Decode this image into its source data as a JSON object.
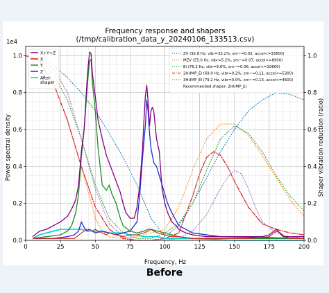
{
  "caption": "Before",
  "chart_data": {
    "type": "line",
    "title": "Frequency response and shapers",
    "subtitle": "(/tmp/calibration_data_y_20240106_133513.csv)",
    "xlabel": "Frequency, Hz",
    "ylabel": "Power spectral density",
    "y2label": "Shaper vibration reduction (ratio)",
    "y_exponent_label": "1e4",
    "xlim": [
      0,
      200
    ],
    "ylim": [
      0,
      1.05
    ],
    "y2lim": [
      0,
      1.05
    ],
    "x_ticks": [
      "0",
      "25",
      "50",
      "75",
      "100",
      "125",
      "150",
      "175",
      "200"
    ],
    "y_ticks": [
      "0.0",
      "0.2",
      "0.4",
      "0.6",
      "0.8",
      "1.0"
    ],
    "y2_ticks": [
      "0.0",
      "0.2",
      "0.4",
      "0.6",
      "0.8",
      "1.0"
    ],
    "grid": true,
    "legend_left": {
      "placement": "top-left",
      "entries": [
        {
          "name": "X+Y+Z",
          "color": "#800080",
          "style": "solid"
        },
        {
          "name": "X",
          "color": "#cc2222",
          "style": "solid"
        },
        {
          "name": "Y",
          "color": "#228b22",
          "style": "solid"
        },
        {
          "name": "Z",
          "color": "#1f2fcc",
          "style": "solid"
        },
        {
          "name": "After\nshaper",
          "color": "#00ced1",
          "style": "solid"
        }
      ]
    },
    "legend_right": {
      "placement": "top-right",
      "entries": [
        {
          "name": "ZV (92.8 Hz, vibr=32.2%, sm~=0.02, accel<=33600)",
          "color": "#1f77b4",
          "style": "dotted"
        },
        {
          "name": "MZV (55.0 Hz, vibr=5.2%, sm~=0.07, accel<=8900)",
          "color": "#ff7f0e",
          "style": "dotted"
        },
        {
          "name": "EI (76.2 Hz, vibr=9.6%, sm~=0.06, accel<=10800)",
          "color": "#2ca02c",
          "style": "dotted"
        },
        {
          "name": "2HUMP_EI (69.0 Hz, vibr=0.2%, sm~=0.11, accel<=5300)",
          "color": "#d62728",
          "style": "dashdot"
        },
        {
          "name": "3HUMP_EI (79.2 Hz, vibr=0.0%, sm~=0.13, accel<=4600)",
          "color": "#9467bd",
          "style": "dotted"
        }
      ],
      "note": "Recommended shaper: 2HUMP_EI"
    },
    "series": [
      {
        "name": "X+Y+Z",
        "color": "#800080",
        "width": 1.3,
        "dash": "",
        "x": [
          5,
          10,
          15,
          20,
          25,
          30,
          33,
          36,
          38,
          40,
          42,
          44,
          45,
          46,
          47,
          48,
          50,
          52,
          55,
          58,
          60,
          62,
          65,
          68,
          70,
          72,
          75,
          78,
          80,
          82,
          84,
          85,
          86,
          87,
          88,
          89,
          90,
          91,
          92,
          94,
          96,
          98,
          100,
          102,
          105,
          108,
          110,
          115,
          120,
          130,
          140,
          150,
          160,
          170,
          175,
          180,
          185,
          190,
          195,
          200
        ],
        "y": [
          0.02,
          0.05,
          0.06,
          0.08,
          0.1,
          0.13,
          0.17,
          0.22,
          0.3,
          0.48,
          0.6,
          0.85,
          0.95,
          1.02,
          1.01,
          0.9,
          0.78,
          0.65,
          0.55,
          0.46,
          0.42,
          0.38,
          0.32,
          0.26,
          0.2,
          0.15,
          0.12,
          0.12,
          0.18,
          0.3,
          0.5,
          0.65,
          0.78,
          0.84,
          0.75,
          0.62,
          0.7,
          0.72,
          0.7,
          0.55,
          0.48,
          0.28,
          0.2,
          0.15,
          0.1,
          0.08,
          0.06,
          0.04,
          0.03,
          0.02,
          0.02,
          0.02,
          0.02,
          0.02,
          0.03,
          0.06,
          0.02,
          0.02,
          0.02,
          0.02
        ]
      },
      {
        "name": "X",
        "color": "#cc2222",
        "width": 1.1,
        "dash": "",
        "x": [
          5,
          20,
          30,
          35,
          40,
          42,
          44,
          46,
          48,
          50,
          52,
          55,
          58,
          60,
          65,
          70,
          75,
          80,
          85,
          88,
          90,
          92,
          95,
          100,
          105,
          110,
          120,
          140,
          160,
          175,
          180,
          183,
          186,
          190,
          200
        ],
        "y": [
          0.01,
          0.01,
          0.01,
          0.01,
          0.04,
          0.05,
          0.06,
          0.06,
          0.05,
          0.06,
          0.05,
          0.04,
          0.03,
          0.04,
          0.03,
          0.02,
          0.03,
          0.03,
          0.04,
          0.05,
          0.06,
          0.05,
          0.04,
          0.03,
          0.02,
          0.02,
          0.01,
          0.01,
          0.01,
          0.02,
          0.05,
          0.04,
          0.02,
          0.01,
          0.01
        ]
      },
      {
        "name": "Y",
        "color": "#228b22",
        "width": 1.3,
        "dash": "",
        "x": [
          5,
          15,
          25,
          30,
          33,
          36,
          38,
          40,
          42,
          44,
          45,
          46,
          47,
          48,
          50,
          52,
          55,
          58,
          60,
          62,
          65,
          68,
          70,
          75,
          80,
          85,
          88,
          90,
          95,
          100,
          105,
          110,
          120,
          140,
          200
        ],
        "y": [
          0.01,
          0.02,
          0.03,
          0.05,
          0.08,
          0.15,
          0.25,
          0.45,
          0.6,
          0.8,
          0.9,
          0.97,
          0.98,
          0.85,
          0.7,
          0.5,
          0.3,
          0.27,
          0.3,
          0.25,
          0.2,
          0.12,
          0.08,
          0.05,
          0.04,
          0.05,
          0.06,
          0.06,
          0.05,
          0.04,
          0.03,
          0.02,
          0.01,
          0.01,
          0.01
        ]
      },
      {
        "name": "Z",
        "color": "#1f2fcc",
        "width": 1.3,
        "dash": "",
        "x": [
          5,
          20,
          30,
          35,
          38,
          40,
          42,
          44,
          46,
          48,
          50,
          55,
          60,
          65,
          70,
          75,
          80,
          82,
          84,
          86,
          87,
          88,
          89,
          90,
          92,
          94,
          96,
          98,
          100,
          102,
          105,
          110,
          120,
          140,
          200
        ],
        "y": [
          0.01,
          0.01,
          0.02,
          0.03,
          0.05,
          0.1,
          0.07,
          0.05,
          0.06,
          0.05,
          0.04,
          0.05,
          0.04,
          0.03,
          0.04,
          0.05,
          0.1,
          0.25,
          0.45,
          0.62,
          0.76,
          0.7,
          0.58,
          0.5,
          0.42,
          0.4,
          0.35,
          0.3,
          0.25,
          0.2,
          0.15,
          0.08,
          0.04,
          0.02,
          0.01
        ]
      },
      {
        "name": "After shaper",
        "color": "#00ced1",
        "width": 1.6,
        "dash": "",
        "x": [
          5,
          10,
          15,
          20,
          25,
          30,
          35,
          40,
          45,
          50,
          55,
          60,
          65,
          70,
          75,
          80,
          85,
          90,
          95,
          100,
          110,
          120,
          150,
          200
        ],
        "y": [
          0.01,
          0.03,
          0.04,
          0.05,
          0.06,
          0.06,
          0.06,
          0.06,
          0.05,
          0.05,
          0.05,
          0.04,
          0.04,
          0.04,
          0.03,
          0.03,
          0.02,
          0.02,
          0.02,
          0.01,
          0.01,
          0.01,
          0.0,
          0.0
        ]
      }
    ],
    "shaper_curves": [
      {
        "name": "ZV",
        "color": "#1f77b4",
        "dash": "1,2.5",
        "width": 1.1,
        "x": [
          0,
          10,
          20,
          30,
          40,
          50,
          60,
          70,
          80,
          90,
          100,
          110,
          120,
          130,
          140,
          150,
          160,
          170,
          180,
          190,
          200
        ],
        "y": [
          1.0,
          0.99,
          0.95,
          0.88,
          0.8,
          0.7,
          0.58,
          0.45,
          0.3,
          0.12,
          0.02,
          0.08,
          0.2,
          0.34,
          0.48,
          0.6,
          0.7,
          0.76,
          0.8,
          0.79,
          0.76
        ]
      },
      {
        "name": "MZV",
        "color": "#ff7f0e",
        "dash": "1,2.5",
        "width": 1.1,
        "x": [
          0,
          10,
          20,
          30,
          40,
          50,
          55,
          60,
          70,
          80,
          90,
          100,
          110,
          120,
          130,
          140,
          150,
          160,
          170,
          180,
          190,
          200
        ],
        "y": [
          1.0,
          0.96,
          0.85,
          0.65,
          0.4,
          0.12,
          0.05,
          0.02,
          0.01,
          0.02,
          0.04,
          0.06,
          0.18,
          0.38,
          0.55,
          0.63,
          0.63,
          0.57,
          0.46,
          0.34,
          0.22,
          0.13
        ]
      },
      {
        "name": "EI",
        "color": "#2ca02c",
        "dash": "1,2.5",
        "width": 1.1,
        "x": [
          0,
          10,
          20,
          30,
          40,
          50,
          60,
          70,
          80,
          90,
          100,
          110,
          120,
          130,
          140,
          150,
          160,
          170,
          180,
          190,
          200
        ],
        "y": [
          1.0,
          0.98,
          0.9,
          0.76,
          0.55,
          0.3,
          0.12,
          0.04,
          0.01,
          0.01,
          0.04,
          0.09,
          0.2,
          0.38,
          0.55,
          0.62,
          0.58,
          0.48,
          0.35,
          0.24,
          0.16
        ]
      },
      {
        "name": "2HUMP_EI",
        "color": "#d62728",
        "dash": "6,2,1,2",
        "width": 1.3,
        "x": [
          0,
          10,
          20,
          30,
          40,
          50,
          60,
          70,
          80,
          90,
          100,
          110,
          120,
          125,
          130,
          135,
          140,
          145,
          150,
          160,
          170,
          180,
          190,
          200
        ],
        "y": [
          1.0,
          0.97,
          0.85,
          0.65,
          0.4,
          0.18,
          0.06,
          0.01,
          0.0,
          0.0,
          0.01,
          0.04,
          0.24,
          0.36,
          0.45,
          0.48,
          0.46,
          0.4,
          0.32,
          0.18,
          0.09,
          0.06,
          0.04,
          0.03
        ]
      },
      {
        "name": "3HUMP_EI",
        "color": "#9467bd",
        "dash": "1,2.5",
        "width": 1.1,
        "x": [
          0,
          10,
          20,
          30,
          40,
          50,
          60,
          70,
          80,
          90,
          100,
          110,
          120,
          130,
          140,
          145,
          150,
          155,
          160,
          165,
          170,
          180,
          190,
          200
        ],
        "y": [
          1.0,
          0.98,
          0.93,
          0.8,
          0.55,
          0.28,
          0.09,
          0.02,
          0.0,
          0.0,
          0.0,
          0.01,
          0.05,
          0.14,
          0.28,
          0.34,
          0.38,
          0.36,
          0.28,
          0.18,
          0.1,
          0.04,
          0.02,
          0.01
        ]
      }
    ]
  }
}
